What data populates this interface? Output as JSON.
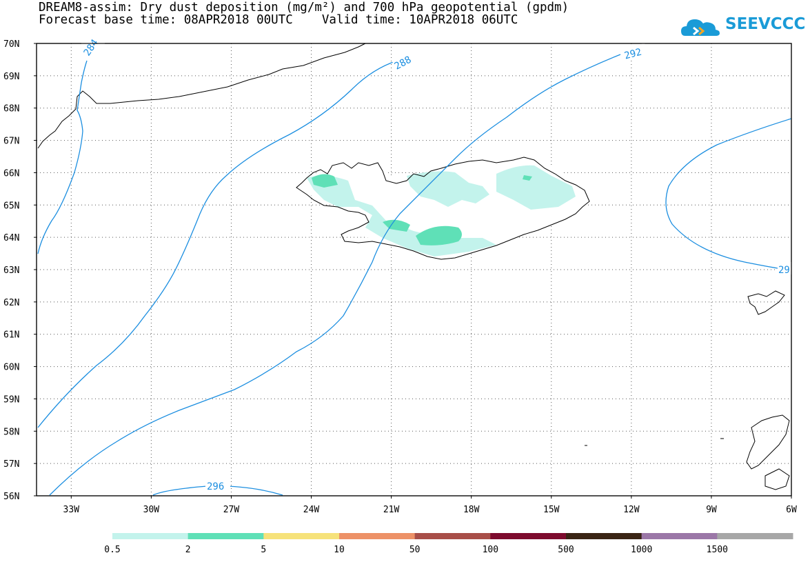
{
  "title": {
    "line1": "DREAM8-assim: Dry dust deposition (mg/m²) and 700 hPa geopotential (gpdm)",
    "line2": "Forecast base time: 08APR2018 00UTC    Valid time: 10APR2018 06UTC"
  },
  "logo": {
    "text": "SEEVCCC",
    "icon": "cloud-icon",
    "color": "#1a9bd7"
  },
  "map": {
    "lat_range": [
      56,
      70
    ],
    "lon_range": [
      -34.3,
      -6
    ],
    "lat_labels": [
      "70N",
      "69N",
      "68N",
      "67N",
      "66N",
      "65N",
      "64N",
      "63N",
      "62N",
      "61N",
      "60N",
      "59N",
      "58N",
      "57N",
      "56N"
    ],
    "lon_labels": [
      "33W",
      "30W",
      "27W",
      "24W",
      "21W",
      "18W",
      "15W",
      "12W",
      "9W",
      "6W"
    ],
    "contour_color": "#1b8ee0",
    "contour_labels": [
      "284",
      "288",
      "292",
      "296",
      "29"
    ]
  },
  "colorbar": {
    "colors": [
      "#c3f3ec",
      "#5fe0b7",
      "#f6e27a",
      "#ed9167",
      "#a84e48",
      "#7d0b2e",
      "#3a2414",
      "#9b77a7",
      "#a7a7a7"
    ],
    "labels": [
      "0.5",
      "2",
      "5",
      "10",
      "50",
      "100",
      "500",
      "1000",
      "1500"
    ]
  }
}
